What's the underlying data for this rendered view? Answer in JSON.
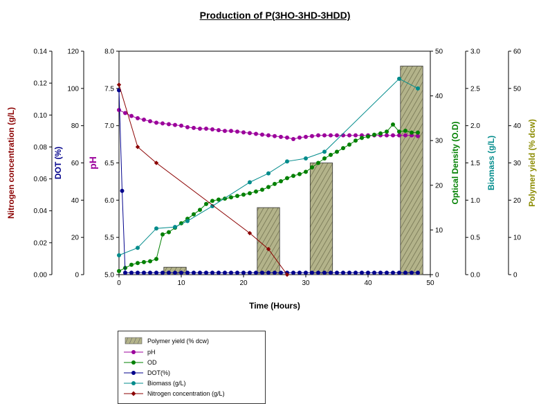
{
  "chart_data": {
    "type": "line",
    "title": "Production of P(3HO-3HD-3HDD)",
    "xlabel": "Time (Hours)",
    "xlim": [
      0,
      50
    ],
    "xticks": [
      0,
      10,
      20,
      30,
      40,
      50
    ],
    "axes": {
      "nitrogen": {
        "label": "Nitrogen concentration (g/L)",
        "lim": [
          0,
          0.14
        ],
        "ticks": [
          "0.00",
          "0.02",
          "0.04",
          "0.06",
          "0.08",
          "0.10",
          "0.12",
          "0.14"
        ],
        "color": "#8b0000"
      },
      "dot": {
        "label": "DOT (%)",
        "lim": [
          0,
          120
        ],
        "ticks": [
          "0",
          "20",
          "40",
          "60",
          "80",
          "100",
          "120"
        ],
        "color": "#00008b"
      },
      "ph": {
        "label": "pH",
        "lim": [
          5.0,
          8.0
        ],
        "ticks": [
          "5.0",
          "5.5",
          "6.0",
          "6.5",
          "7.0",
          "7.5",
          "8.0"
        ],
        "color": "#9b009b"
      },
      "od": {
        "label": "Optical Density (O.D)",
        "lim": [
          0,
          50
        ],
        "ticks": [
          "0",
          "10",
          "20",
          "30",
          "40",
          "50"
        ],
        "color": "#008000"
      },
      "biomass": {
        "label": "Biomass (g/L)",
        "lim": [
          0,
          3.0
        ],
        "ticks": [
          "0.0",
          "0.5",
          "1.0",
          "1.5",
          "2.0",
          "2.5",
          "3.0"
        ],
        "color": "#008b8b"
      },
      "yield": {
        "label": "Polymer yield (% dcw)",
        "lim": [
          0,
          60
        ],
        "ticks": [
          "0",
          "10",
          "20",
          "30",
          "40",
          "50",
          "60"
        ],
        "color": "#8b8b00"
      }
    },
    "bars": {
      "name": "Polymer yield (% dcw)",
      "axis": "yield",
      "x": [
        9,
        24,
        32.5,
        47
      ],
      "width": 3.6,
      "values": [
        2,
        18,
        30,
        56
      ]
    },
    "series": [
      {
        "name": "pH",
        "axis": "ph",
        "color": "#9b009b",
        "x": [
          0,
          1,
          2,
          3,
          4,
          5,
          6,
          7,
          8,
          9,
          10,
          11,
          12,
          13,
          14,
          15,
          16,
          17,
          18,
          19,
          20,
          21,
          22,
          23,
          24,
          25,
          26,
          27,
          28,
          29,
          30,
          31,
          32,
          33,
          34,
          35,
          36,
          37,
          38,
          39,
          40,
          41,
          42,
          43,
          44,
          45,
          46,
          47,
          48
        ],
        "y": [
          7.21,
          7.17,
          7.13,
          7.1,
          7.08,
          7.06,
          7.04,
          7.03,
          7.02,
          7.01,
          7.0,
          6.98,
          6.97,
          6.96,
          6.96,
          6.95,
          6.94,
          6.93,
          6.93,
          6.92,
          6.91,
          6.9,
          6.89,
          6.88,
          6.87,
          6.86,
          6.85,
          6.84,
          6.82,
          6.84,
          6.85,
          6.86,
          6.87,
          6.87,
          6.87,
          6.87,
          6.87,
          6.87,
          6.87,
          6.87,
          6.87,
          6.87,
          6.87,
          6.87,
          6.87,
          6.87,
          6.87,
          6.87,
          6.86
        ]
      },
      {
        "name": "OD",
        "axis": "od",
        "color": "#008000",
        "x": [
          0,
          1,
          2,
          3,
          4,
          5,
          6,
          7,
          8,
          9,
          10,
          11,
          12,
          13,
          14,
          15,
          16,
          17,
          18,
          19,
          20,
          21,
          22,
          23,
          24,
          25,
          26,
          27,
          28,
          29,
          30,
          31,
          32,
          33,
          34,
          35,
          36,
          37,
          38,
          39,
          40,
          41,
          42,
          43,
          44,
          45,
          46,
          47,
          48
        ],
        "y": [
          0.8,
          1.5,
          2.2,
          2.6,
          2.8,
          3.0,
          3.5,
          9.0,
          9.5,
          10.5,
          11.5,
          12.5,
          13.5,
          14.5,
          15.8,
          16.5,
          16.8,
          17.0,
          17.3,
          17.6,
          17.9,
          18.2,
          18.6,
          19.0,
          19.6,
          20.3,
          20.9,
          21.6,
          22.1,
          22.5,
          23.0,
          24.0,
          25.0,
          26.0,
          26.8,
          27.5,
          28.3,
          29.1,
          30.0,
          30.6,
          30.9,
          31.3,
          31.6,
          32.0,
          33.6,
          32.0,
          32.2,
          31.8,
          31.8
        ]
      },
      {
        "name": "DOT(%)",
        "axis": "dot",
        "color": "#00008b",
        "x": [
          0,
          0.5,
          1,
          2,
          3,
          4,
          5,
          6,
          7,
          8,
          9,
          10,
          11,
          12,
          13,
          14,
          15,
          16,
          17,
          18,
          19,
          20,
          21,
          22,
          23,
          24,
          25,
          26,
          27,
          28,
          29,
          30,
          31,
          32,
          33,
          34,
          35,
          36,
          37,
          38,
          39,
          40,
          41,
          42,
          43,
          44,
          45,
          46,
          47,
          48
        ],
        "y": [
          99,
          45,
          1,
          1,
          1,
          1,
          1,
          1,
          1,
          1,
          1,
          1,
          1,
          1,
          1,
          1,
          1,
          1,
          1,
          1,
          1,
          1,
          1,
          1,
          1,
          1,
          1,
          1,
          1,
          1,
          1,
          1,
          1,
          1,
          1,
          1,
          1,
          1,
          1,
          1,
          1,
          1,
          1,
          1,
          1,
          1,
          1,
          1,
          1,
          1
        ]
      },
      {
        "name": "Biomass (g/L)",
        "axis": "biomass",
        "color": "#008b8b",
        "x": [
          0,
          3,
          6,
          9,
          11,
          15,
          21,
          24,
          27,
          30,
          33,
          45,
          48
        ],
        "y": [
          0.26,
          0.36,
          0.62,
          0.64,
          0.72,
          0.92,
          1.24,
          1.36,
          1.52,
          1.56,
          1.65,
          2.63,
          2.5
        ]
      },
      {
        "name": "Nitrogen concentration (g/L)",
        "axis": "nitrogen",
        "color": "#8b0000",
        "x": [
          0,
          3,
          6,
          21,
          24,
          27
        ],
        "y": [
          0.119,
          0.08,
          0.07,
          0.026,
          0.016,
          0.0
        ]
      }
    ],
    "legend_placement": "bottom-left",
    "legend": [
      "Polymer yield (% dcw)",
      "pH",
      "OD",
      "DOT(%)",
      "Biomass (g/L)",
      "Nitrogen concentration (g/L)"
    ]
  }
}
